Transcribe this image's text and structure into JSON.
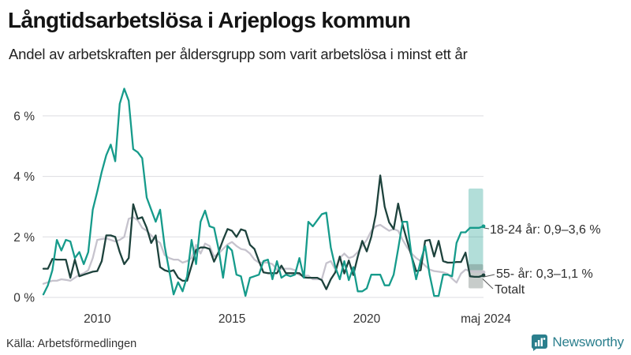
{
  "header": {
    "title": "Långtidsarbetslösa i Arjeplogs kommun",
    "subtitle": "Andel av arbetskraften per åldersgrupp som varit arbetslösa i minst ett år"
  },
  "annotations": {
    "group_18_24": "18-24 år: 0,9–3,6 %",
    "group_55": "55- år: 0,3–1,1 %",
    "total": "Totalt"
  },
  "footer": {
    "source": "Källa: Arbetsförmedlingen",
    "brand": "Newsworthy",
    "brand_color": "#2b7f8d",
    "brand_icon": "newsworthy-bar-chart-bubble"
  },
  "chart_data": {
    "type": "line",
    "title": "Långtidsarbetslösa i Arjeplogs kommun",
    "subtitle": "Andel av arbetskraften per åldersgrupp som varit arbetslösa i minst ett år",
    "xlabel": "",
    "ylabel": "",
    "y_unit": "%",
    "ylim": [
      0,
      7
    ],
    "grid": "horizontal",
    "x_start_year": 2008.0,
    "x_end_year": 2024.3333,
    "x_step_years": 0.16667,
    "y_ticks": [
      {
        "label": "0 %",
        "value": 0
      },
      {
        "label": "2 %",
        "value": 2
      },
      {
        "label": "4 %",
        "value": 4
      },
      {
        "label": "6 %",
        "value": 6
      }
    ],
    "x_ticks": [
      {
        "label": "2010",
        "year": 2010
      },
      {
        "label": "2015",
        "year": 2015
      },
      {
        "label": "2020",
        "year": 2020
      },
      {
        "label": "maj 2024",
        "year": 2024.42
      }
    ],
    "series": [
      {
        "id": "totalt",
        "name": "Totalt",
        "color": "#c6c3cd",
        "values": [
          0.45,
          0.5,
          0.55,
          0.55,
          0.6,
          0.58,
          0.55,
          0.65,
          0.75,
          0.8,
          0.9,
          1.3,
          1.9,
          1.93,
          1.95,
          1.9,
          1.85,
          1.9,
          2.0,
          2.6,
          2.65,
          2.55,
          2.3,
          2.2,
          2.05,
          1.9,
          1.8,
          1.4,
          1.3,
          1.25,
          1.25,
          1.15,
          1.2,
          1.3,
          1.74,
          1.45,
          1.78,
          1.7,
          1.35,
          1.45,
          1.6,
          1.75,
          1.83,
          1.7,
          1.6,
          1.57,
          1.45,
          1.25,
          1.15,
          1.15,
          1.15,
          1.1,
          0.92,
          0.95,
          0.95,
          0.95,
          0.9,
          0.74,
          0.72,
          0.72,
          0.6,
          0.6,
          0.6,
          1.13,
          1.2,
          0.92,
          1.3,
          1.45,
          1.3,
          1.35,
          1.5,
          1.7,
          1.9,
          2.2,
          2.35,
          2.4,
          2.3,
          2.2,
          2.26,
          2.2,
          1.9,
          1.65,
          1.45,
          1.3,
          1.2,
          1.05,
          0.92,
          0.87,
          0.85,
          0.83,
          0.78,
          0.62,
          0.49,
          0.79,
          0.92,
          0.87,
          0.85,
          0.85,
          0.83
        ]
      },
      {
        "id": "55",
        "name": "55- år",
        "color": "#1d423c",
        "values": [
          0.95,
          0.95,
          1.27,
          1.25,
          1.25,
          1.25,
          0.65,
          1.25,
          0.7,
          0.75,
          0.8,
          0.85,
          0.87,
          1.2,
          2.05,
          2.05,
          2.0,
          1.5,
          1.1,
          1.3,
          3.08,
          2.6,
          2.65,
          2.3,
          1.8,
          2.05,
          1.0,
          0.9,
          0.85,
          0.9,
          0.65,
          0.55,
          0.55,
          1.05,
          1.57,
          1.65,
          1.65,
          1.6,
          1.18,
          1.5,
          1.9,
          2.26,
          2.2,
          2.0,
          2.25,
          2.2,
          1.74,
          1.6,
          1.2,
          0.83,
          0.8,
          0.8,
          0.8,
          1.05,
          0.8,
          0.8,
          0.8,
          0.8,
          0.66,
          0.65,
          0.65,
          0.65,
          0.57,
          0.27,
          0.6,
          0.83,
          1.35,
          0.79,
          1.22,
          0.74,
          1.35,
          1.87,
          1.52,
          2.0,
          2.74,
          4.03,
          3.0,
          2.48,
          2.26,
          3.1,
          2.4,
          1.87,
          1.35,
          0.87,
          0.9,
          1.87,
          1.9,
          1.35,
          1.87,
          1.2,
          1.15,
          1.15,
          1.17,
          1.17,
          1.48,
          0.7,
          0.68,
          0.68,
          0.73
        ]
      },
      {
        "id": "18-24",
        "name": "18-24 år",
        "color": "#169b8b",
        "values": [
          0.1,
          0.4,
          0.9,
          1.9,
          1.55,
          1.9,
          1.85,
          1.3,
          1.5,
          1.1,
          1.5,
          2.9,
          3.5,
          4.15,
          4.7,
          5.05,
          4.5,
          6.4,
          6.9,
          6.5,
          4.9,
          4.8,
          4.6,
          3.3,
          2.9,
          2.5,
          2.9,
          1.7,
          0.9,
          0.1,
          0.5,
          0.2,
          0.7,
          1.9,
          1.1,
          2.5,
          2.87,
          2.35,
          2.3,
          1.6,
          0.65,
          1.7,
          1.55,
          0.75,
          0.7,
          0.05,
          0.65,
          0.7,
          0.75,
          1.2,
          1.25,
          0.6,
          1.2,
          0.65,
          0.75,
          0.7,
          0.75,
          1.3,
          0.65,
          2.5,
          2.35,
          2.55,
          2.75,
          2.8,
          1.65,
          1.0,
          0.6,
          1.2,
          0.57,
          1.0,
          0.2,
          0.2,
          0.3,
          0.75,
          0.75,
          0.75,
          0.4,
          0.4,
          0.75,
          1.6,
          2.5,
          2.5,
          1.35,
          0.6,
          1.2,
          1.7,
          0.75,
          0.05,
          0.05,
          0.75,
          0.75,
          0.7,
          1.8,
          2.15,
          2.15,
          2.3,
          2.3,
          2.3,
          2.35
        ]
      }
    ],
    "range_bands": [
      {
        "series": "18-24 år",
        "min": 0.9,
        "max": 3.6,
        "color": "#169b8b",
        "opacity": 0.33
      },
      {
        "series": "55- år",
        "min": 0.3,
        "max": 1.1,
        "color": "#5f6d67",
        "opacity": 0.35
      }
    ],
    "end_labels": [
      {
        "text": "18-24 år: 0,9–3,6 %",
        "series": "18-24 år"
      },
      {
        "text": "55- år: 0,3–1,1 %",
        "series": "55- år"
      },
      {
        "text": "Totalt",
        "series": "Totalt"
      }
    ],
    "legend_position": "right-annotations",
    "gridline_color": "#dcdce0"
  }
}
